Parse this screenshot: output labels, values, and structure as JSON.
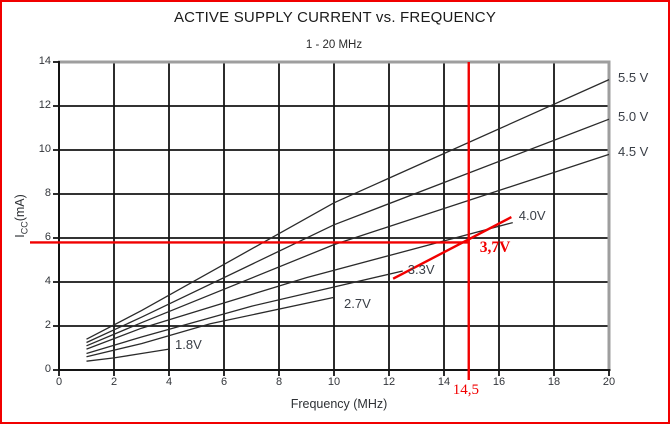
{
  "frame": {
    "border_color": "#f10000"
  },
  "chart_data": {
    "type": "line",
    "title": "ACTIVE SUPPLY CURRENT vs. FREQUENCY",
    "subtitle": "1 - 20 MHz",
    "xlabel": "Frequency (MHz)",
    "ylabel": {
      "main": "I",
      "sub": "CC",
      "unit": "(mA)"
    },
    "xlim": [
      0,
      20
    ],
    "ylim": [
      0,
      14
    ],
    "x_ticks": [
      0,
      2,
      4,
      6,
      8,
      10,
      12,
      14,
      16,
      18,
      20
    ],
    "y_ticks": [
      0,
      2,
      4,
      6,
      8,
      10,
      12,
      14
    ],
    "grid": true,
    "line_color": "#2b2b2b",
    "grid_color": "#141414",
    "series": [
      {
        "label": "5.5 V",
        "label_position": "right-outside",
        "points": [
          [
            1,
            1.4
          ],
          [
            3,
            2.7
          ],
          [
            10,
            7.6
          ],
          [
            20,
            13.2
          ]
        ]
      },
      {
        "label": "5.0 V",
        "label_position": "right-outside",
        "points": [
          [
            1,
            1.25
          ],
          [
            3,
            2.4
          ],
          [
            10,
            6.6
          ],
          [
            20,
            11.4
          ]
        ]
      },
      {
        "label": "4.5 V",
        "label_position": "right-outside",
        "points": [
          [
            1,
            1.1
          ],
          [
            3,
            2.15
          ],
          [
            10,
            5.7
          ],
          [
            20,
            9.8
          ]
        ]
      },
      {
        "label": "4.0V",
        "label_position": "end",
        "points": [
          [
            1,
            0.95
          ],
          [
            3,
            1.9
          ],
          [
            9,
            4.2
          ],
          [
            16.5,
            6.7
          ]
        ]
      },
      {
        "label": "3.3V",
        "label_position": "end",
        "points": [
          [
            1,
            0.75
          ],
          [
            3,
            1.5
          ],
          [
            7,
            2.9
          ],
          [
            12.5,
            4.5
          ]
        ]
      },
      {
        "label": "2.7V",
        "label_position": "end",
        "points": [
          [
            1,
            0.6
          ],
          [
            3,
            1.2
          ],
          [
            5.5,
            2.1
          ],
          [
            10,
            3.3
          ]
        ]
      },
      {
        "label": "1.8V",
        "label_position": "end",
        "points": [
          [
            1,
            0.4
          ],
          [
            2,
            0.55
          ],
          [
            3,
            0.75
          ],
          [
            4,
            0.95
          ]
        ]
      }
    ],
    "annotations": {
      "color": "#f10000",
      "voltage_label": "3,7V",
      "frequency_label": "14,5",
      "hline_ma": 5.8,
      "vline_mhz": 14.9,
      "diagonal": [
        [
          12.15,
          4.15
        ],
        [
          16.45,
          6.95
        ]
      ]
    }
  }
}
